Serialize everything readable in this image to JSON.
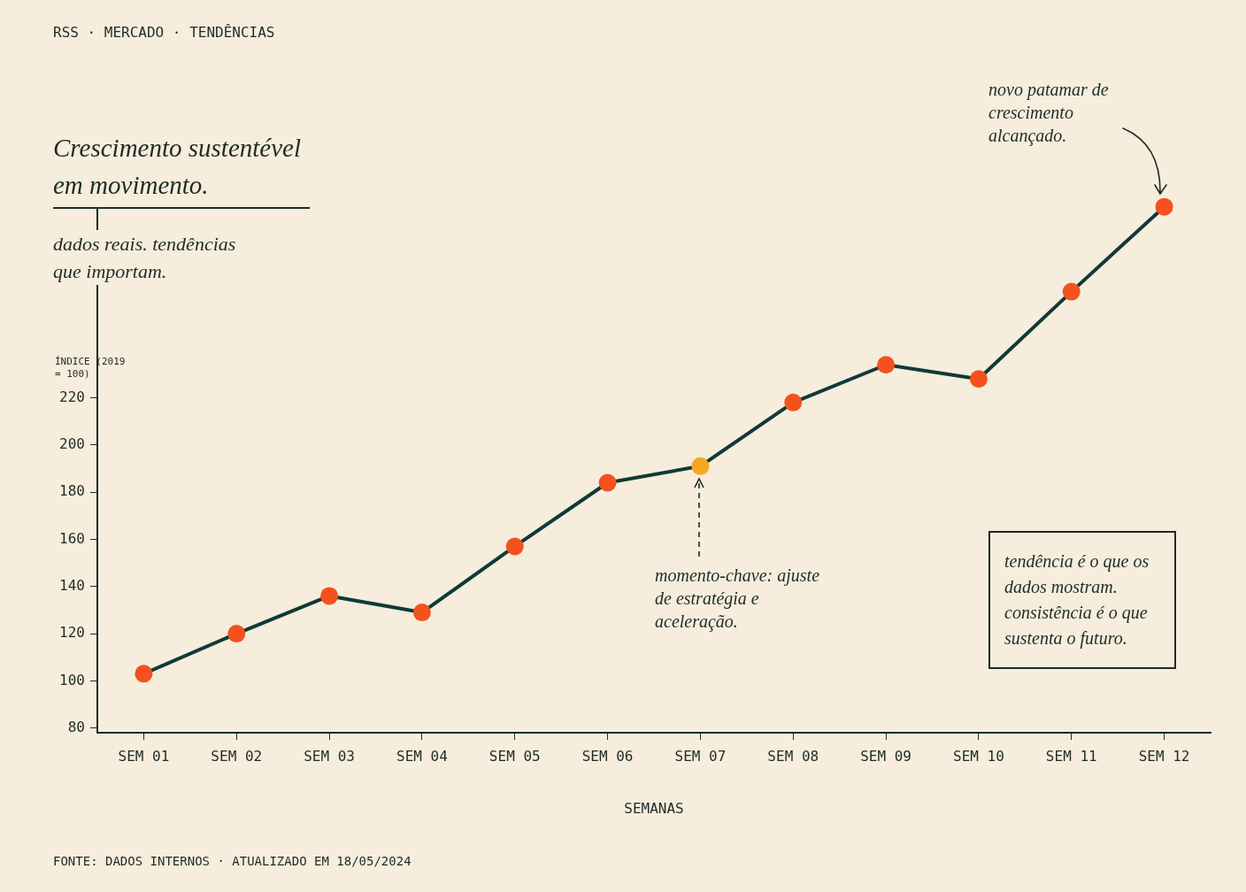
{
  "chart_data": {
    "type": "line",
    "title": "Crescimento sustentével em movimento.",
    "subtitle": "dados reais. tendências que importam.",
    "xlabel": "SEMANAS",
    "ylabel": "ÍNDICE (2019 = 100)",
    "categories": [
      "SEM 01",
      "SEM 02",
      "SEM 03",
      "SEM 04",
      "SEM 05",
      "SEM 06",
      "SEM 07",
      "SEM 08",
      "SEM 09",
      "SEM 10",
      "SEM 11",
      "SEM 12"
    ],
    "series": [
      {
        "color": "#0f3a36",
        "colors": [
          "#f4511e",
          "#f4511e",
          "#f4511e",
          "#f4511e",
          "#f4511e",
          "#f4511e",
          "#f5a623",
          "#f4511e",
          "#f4511e",
          "#f4511e",
          "#f4511e",
          "#f4511e"
        ],
        "values": [
          103,
          120,
          136,
          129,
          157,
          184,
          191,
          218,
          234,
          228,
          265,
          301
        ]
      }
    ],
    "ylim": [
      78,
      305
    ],
    "yticks": [
      80,
      100,
      120,
      140,
      160,
      180,
      200,
      220
    ],
    "grid": false,
    "legend": false,
    "marker": "circle",
    "line_style": "solid",
    "annotations": [
      "RSS · MERCADO · TENDÊNCIAS",
      "tendência é o que os dados mostram. consistência é o que sustenta o futuro.",
      "FONTE: DADOS INTERNOS · ATUALIZADO EM 18/05/2024",
      "novo patamar de crescimento alcançado.",
      "momento-chave: ajuste de estratégia e aceleração."
    ]
  }
}
